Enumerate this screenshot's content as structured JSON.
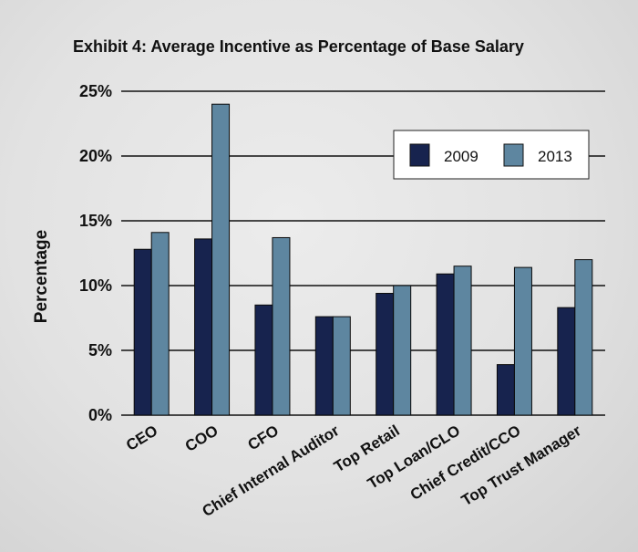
{
  "chart_data": {
    "type": "bar",
    "title": "Exhibit 4: Average Incentive as Percentage of Base Salary",
    "ylabel": "Percentage",
    "xlabel": "",
    "categories": [
      "CEO",
      "COO",
      "CFO",
      "Chief Internal Auditor",
      "Top Retail",
      "Top Loan/CLO",
      "Chief Credit/CCO",
      "Top Trust Manager"
    ],
    "series": [
      {
        "name": "2009",
        "color": "#17234e",
        "values": [
          12.8,
          13.6,
          8.5,
          7.6,
          9.4,
          10.9,
          3.9,
          8.3
        ]
      },
      {
        "name": "2013",
        "color": "#5e86a0",
        "values": [
          14.1,
          24.0,
          13.7,
          7.6,
          10.0,
          11.5,
          11.4,
          12.0
        ]
      }
    ],
    "ylim": [
      0,
      25
    ],
    "yticks": [
      "0%",
      "5%",
      "10%",
      "15%",
      "20%",
      "25%"
    ],
    "grid": true,
    "legend_position": "top-right"
  }
}
